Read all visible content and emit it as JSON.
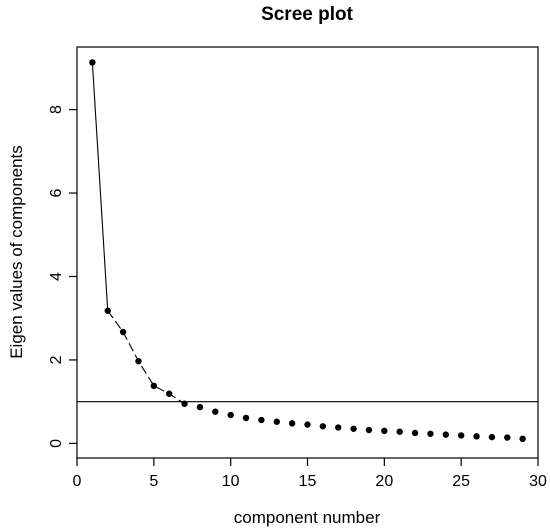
{
  "chart_data": {
    "type": "line",
    "title": "Scree plot",
    "xlabel": "component number",
    "ylabel": "Eigen values of components",
    "xlim": [
      0,
      30
    ],
    "ylim": [
      -0.35,
      9.5
    ],
    "xticks": [
      0,
      5,
      10,
      15,
      20,
      25,
      30
    ],
    "yticks": [
      0,
      2,
      4,
      6,
      8
    ],
    "grid": false,
    "legend": "none",
    "reference_line": {
      "y": 1
    },
    "x": [
      1,
      2,
      3,
      4,
      5,
      6,
      7,
      8,
      9,
      10,
      11,
      12,
      13,
      14,
      15,
      16,
      17,
      18,
      19,
      20,
      21,
      22,
      23,
      24,
      25,
      26,
      27,
      28,
      29
    ],
    "values": [
      9.13,
      3.18,
      2.67,
      1.97,
      1.38,
      1.19,
      0.95,
      0.87,
      0.76,
      0.68,
      0.61,
      0.56,
      0.52,
      0.48,
      0.45,
      0.41,
      0.38,
      0.35,
      0.32,
      0.3,
      0.28,
      0.25,
      0.23,
      0.21,
      0.19,
      0.17,
      0.15,
      0.14,
      0.11
    ],
    "line_segments": "1-2 solid, 2-7 dashed",
    "color": "#000000"
  }
}
